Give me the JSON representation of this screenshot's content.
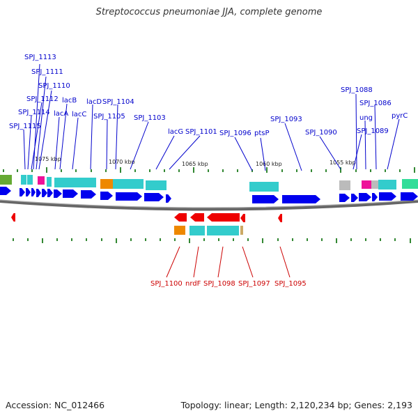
{
  "title": "Streptococcus pneumoniae JJA, complete genome",
  "footer": {
    "accession": "Accession: NC_012466",
    "summary": "Topology: linear; Length: 2,120,234 bp; Genes: 2,193"
  },
  "colors": {
    "forward_gene": "#0000ee",
    "reverse_gene": "#ee0000",
    "forward_label": "#0000cc",
    "reverse_label": "#cc0000",
    "cyan_cog": "#33cccc",
    "orange_cog": "#ee8800",
    "magenta_cog": "#ee1199",
    "green_cog": "#66aa33",
    "gray_cog": "#bbbbbb",
    "tick": "#338833"
  },
  "kbp_labels": [
    "1075 kbp",
    "1070 kbp",
    "1065 kbp",
    "1060 kbp",
    "1055 kbp"
  ],
  "forward_labels": [
    "SPJ_1113",
    "SPJ_1111",
    "SPJ_1110",
    "SPJ_1112",
    "lacB",
    "lacD",
    "SPJ_1104",
    "SPJ_1114",
    "lacA",
    "lacC",
    "SPJ_1105",
    "SPJ_1103",
    "SPJ_1115",
    "lacG",
    "SPJ_1101",
    "SPJ_1096",
    "ptsP",
    "SPJ_1093",
    "SPJ_1090",
    "SPJ_1088",
    "SPJ_1086",
    "SPJ_1089",
    "ung",
    "pyrC"
  ],
  "reverse_labels": [
    "SPJ_1100",
    "nrdF",
    "SPJ_1098",
    "SPJ_1097",
    "SPJ_1095"
  ]
}
